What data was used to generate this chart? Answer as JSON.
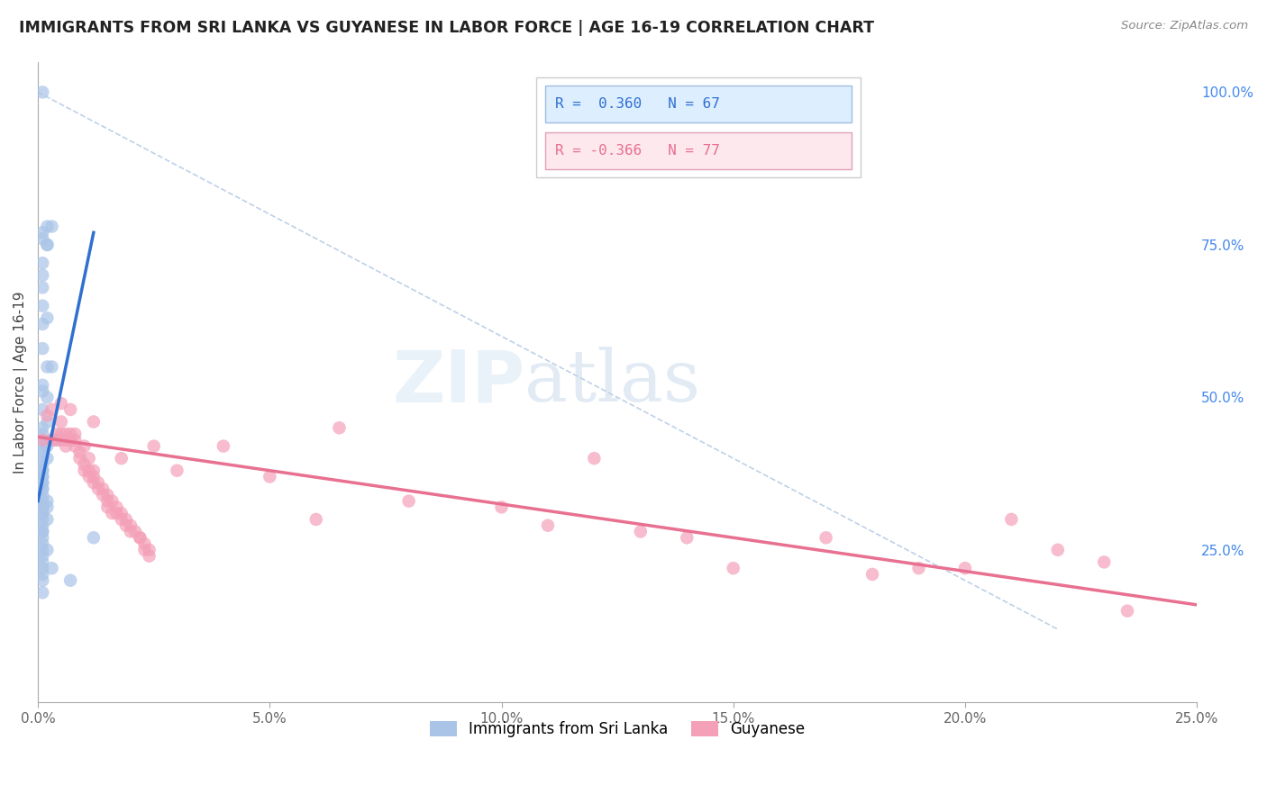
{
  "title": "IMMIGRANTS FROM SRI LANKA VS GUYANESE IN LABOR FORCE | AGE 16-19 CORRELATION CHART",
  "source": "Source: ZipAtlas.com",
  "ylabel": "In Labor Force | Age 16-19",
  "ylabel_right_labels": [
    "100.0%",
    "75.0%",
    "50.0%",
    "25.0%"
  ],
  "ylabel_right_positions": [
    1.0,
    0.75,
    0.5,
    0.25
  ],
  "legend_label1": "Immigrants from Sri Lanka",
  "legend_label2": "Guyanese",
  "watermark_zip": "ZIP",
  "watermark_atlas": "atlas",
  "background_color": "#ffffff",
  "grid_color": "#e0e0e0",
  "blue_color": "#aac4e8",
  "pink_color": "#f4a0b8",
  "blue_line_color": "#3070d0",
  "pink_line_color": "#e87090",
  "dashed_line_color": "#b8cce4",
  "xlim": [
    0.0,
    0.25
  ],
  "ylim": [
    0.0,
    1.05
  ],
  "blue_scatter_x": [
    0.001,
    0.002,
    0.003,
    0.001,
    0.001,
    0.002,
    0.002,
    0.001,
    0.001,
    0.001,
    0.001,
    0.002,
    0.001,
    0.001,
    0.003,
    0.002,
    0.001,
    0.001,
    0.002,
    0.001,
    0.002,
    0.001,
    0.001,
    0.001,
    0.003,
    0.004,
    0.001,
    0.002,
    0.001,
    0.001,
    0.002,
    0.001,
    0.001,
    0.001,
    0.001,
    0.001,
    0.001,
    0.001,
    0.001,
    0.001,
    0.001,
    0.001,
    0.002,
    0.001,
    0.002,
    0.001,
    0.001,
    0.001,
    0.001,
    0.002,
    0.001,
    0.001,
    0.001,
    0.001,
    0.012,
    0.001,
    0.001,
    0.002,
    0.001,
    0.001,
    0.003,
    0.001,
    0.001,
    0.001,
    0.007,
    0.001
  ],
  "blue_scatter_y": [
    1.0,
    0.78,
    0.78,
    0.77,
    0.76,
    0.75,
    0.75,
    0.72,
    0.7,
    0.68,
    0.65,
    0.63,
    0.62,
    0.58,
    0.55,
    0.55,
    0.52,
    0.51,
    0.5,
    0.48,
    0.46,
    0.45,
    0.44,
    0.43,
    0.43,
    0.43,
    0.42,
    0.42,
    0.41,
    0.4,
    0.4,
    0.39,
    0.38,
    0.38,
    0.37,
    0.37,
    0.36,
    0.36,
    0.35,
    0.35,
    0.34,
    0.33,
    0.33,
    0.32,
    0.32,
    0.32,
    0.31,
    0.31,
    0.3,
    0.3,
    0.29,
    0.28,
    0.28,
    0.27,
    0.27,
    0.26,
    0.25,
    0.25,
    0.24,
    0.23,
    0.22,
    0.22,
    0.21,
    0.2,
    0.2,
    0.18
  ],
  "pink_scatter_x": [
    0.001,
    0.002,
    0.003,
    0.003,
    0.004,
    0.004,
    0.005,
    0.005,
    0.005,
    0.006,
    0.006,
    0.006,
    0.007,
    0.007,
    0.008,
    0.008,
    0.008,
    0.009,
    0.009,
    0.01,
    0.01,
    0.01,
    0.011,
    0.011,
    0.011,
    0.012,
    0.012,
    0.012,
    0.013,
    0.013,
    0.014,
    0.014,
    0.015,
    0.015,
    0.015,
    0.016,
    0.016,
    0.017,
    0.017,
    0.018,
    0.018,
    0.019,
    0.019,
    0.02,
    0.02,
    0.021,
    0.022,
    0.022,
    0.023,
    0.023,
    0.024,
    0.024,
    0.005,
    0.007,
    0.05,
    0.06,
    0.065,
    0.08,
    0.1,
    0.11,
    0.12,
    0.13,
    0.14,
    0.15,
    0.17,
    0.18,
    0.19,
    0.2,
    0.21,
    0.22,
    0.23,
    0.235,
    0.025,
    0.03,
    0.04,
    0.012,
    0.018
  ],
  "pink_scatter_y": [
    0.43,
    0.47,
    0.48,
    0.43,
    0.44,
    0.43,
    0.46,
    0.44,
    0.43,
    0.44,
    0.43,
    0.42,
    0.44,
    0.43,
    0.44,
    0.43,
    0.42,
    0.4,
    0.41,
    0.42,
    0.38,
    0.39,
    0.4,
    0.38,
    0.37,
    0.38,
    0.37,
    0.36,
    0.36,
    0.35,
    0.34,
    0.35,
    0.33,
    0.34,
    0.32,
    0.33,
    0.31,
    0.32,
    0.31,
    0.31,
    0.3,
    0.29,
    0.3,
    0.29,
    0.28,
    0.28,
    0.27,
    0.27,
    0.26,
    0.25,
    0.25,
    0.24,
    0.49,
    0.48,
    0.37,
    0.3,
    0.45,
    0.33,
    0.32,
    0.29,
    0.4,
    0.28,
    0.27,
    0.22,
    0.27,
    0.21,
    0.22,
    0.22,
    0.3,
    0.25,
    0.23,
    0.15,
    0.42,
    0.38,
    0.42,
    0.46,
    0.4
  ],
  "blue_line_x": [
    0.0,
    0.012
  ],
  "blue_line_y": [
    0.33,
    0.77
  ],
  "pink_line_x": [
    0.0,
    0.25
  ],
  "pink_line_y": [
    0.435,
    0.16
  ],
  "dashed_line_x": [
    0.0,
    0.22
  ],
  "dashed_line_y": [
    1.0,
    0.12
  ],
  "xticks": [
    0.0,
    0.05,
    0.1,
    0.15,
    0.2,
    0.25
  ],
  "xtick_labels": [
    "0.0%",
    "5.0%",
    "10.0%",
    "15.0%",
    "20.0%",
    "25.0%"
  ]
}
